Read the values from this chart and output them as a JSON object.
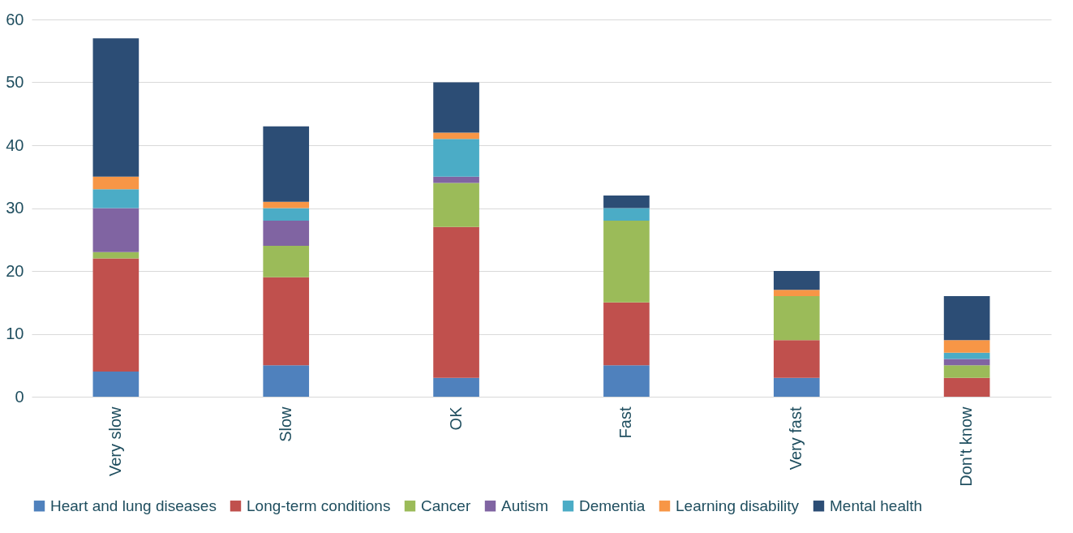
{
  "chart_data": {
    "type": "bar",
    "stacked": true,
    "categories": [
      "Very slow",
      "Slow",
      "OK",
      "Fast",
      "Very fast",
      "Don't know"
    ],
    "series": [
      {
        "name": "Heart and lung diseases",
        "color": "#4f81bd",
        "values": [
          4,
          5,
          3,
          5,
          3,
          0
        ]
      },
      {
        "name": "Long-term conditions",
        "color": "#c0504d",
        "values": [
          18,
          14,
          24,
          10,
          6,
          3
        ]
      },
      {
        "name": "Cancer",
        "color": "#9bbb59",
        "values": [
          1,
          5,
          7,
          13,
          7,
          2
        ]
      },
      {
        "name": "Autism",
        "color": "#8064a2",
        "values": [
          7,
          4,
          1,
          0,
          0,
          1
        ]
      },
      {
        "name": "Dementia",
        "color": "#4bacc6",
        "values": [
          3,
          2,
          6,
          2,
          0,
          1
        ]
      },
      {
        "name": "Learning disability",
        "color": "#f79646",
        "values": [
          2,
          1,
          1,
          0,
          1,
          2
        ]
      },
      {
        "name": "Mental health",
        "color": "#2c4d75",
        "values": [
          22,
          12,
          8,
          2,
          3,
          7
        ]
      }
    ],
    "ylim": [
      0,
      60
    ],
    "yticks": [
      0,
      10,
      20,
      30,
      40,
      50,
      60
    ],
    "grid": "y",
    "legend": "bottom"
  }
}
